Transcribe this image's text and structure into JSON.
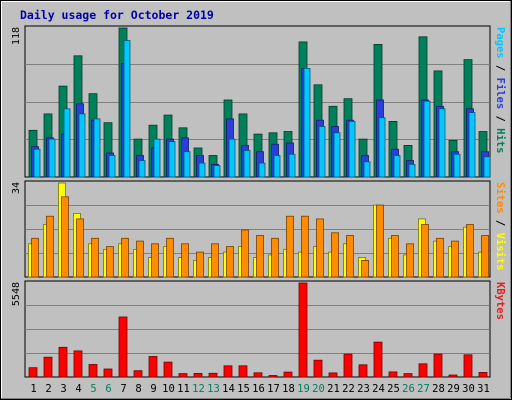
{
  "chart_data": {
    "type": "bar",
    "title": "Daily usage for October 2019",
    "categories": [
      "1",
      "2",
      "3",
      "4",
      "5",
      "6",
      "7",
      "8",
      "9",
      "10",
      "11",
      "12",
      "13",
      "14",
      "15",
      "16",
      "17",
      "18",
      "19",
      "20",
      "21",
      "22",
      "23",
      "24",
      "25",
      "26",
      "27",
      "28",
      "29",
      "30",
      "31"
    ],
    "weekend_days": [
      "5",
      "6",
      "12",
      "13",
      "19",
      "20",
      "26",
      "27"
    ],
    "panels": [
      {
        "id": "hits",
        "max_label": "118",
        "ylim": [
          0,
          118
        ],
        "right_label": [
          "Pages",
          "Files",
          "Hits"
        ],
        "right_colors": [
          "#00c8ff",
          "#2a3fd8",
          "#00805a"
        ],
        "series": [
          {
            "name": "Hits",
            "color": "#00805a",
            "values": [
              37,
              50,
              72,
              96,
              66,
              43,
              118,
              30,
              41,
              49,
              39,
              23,
              17,
              61,
              50,
              34,
              35,
              36,
              107,
              73,
              56,
              62,
              30,
              105,
              44,
              25,
              111,
              84,
              29,
              93,
              36
            ]
          },
          {
            "name": "Files",
            "color": "#2a3fd8",
            "values": [
              24,
              31,
              34,
              58,
              45,
              19,
              90,
              17,
              23,
              30,
              31,
              17,
              10,
              46,
              25,
              20,
              26,
              27,
              86,
              45,
              40,
              45,
              17,
              61,
              22,
              13,
              61,
              56,
              20,
              54,
              20
            ]
          },
          {
            "name": "Pages",
            "color": "#00c8ff",
            "values": [
              22,
              30,
              54,
              50,
              46,
              17,
              108,
              13,
              30,
              28,
              20,
              11,
              9,
              30,
              21,
              11,
              17,
              18,
              86,
              40,
              35,
              44,
              12,
              47,
              17,
              10,
              60,
              54,
              18,
              51,
              16
            ]
          }
        ]
      },
      {
        "id": "visits",
        "max_label": "34",
        "ylim": [
          0,
          34
        ],
        "right_label": [
          "Sites",
          "Visits"
        ],
        "right_colors": [
          "#ff8c00",
          "#ffff00"
        ],
        "series": [
          {
            "name": "Visits",
            "color": "#ffff00",
            "values": [
              12,
              19,
              34,
              23,
              12,
              10,
              12,
              10,
              7,
              11,
              7,
              6,
              7,
              9,
              11,
              7,
              8,
              10,
              9,
              11,
              9,
              12,
              7,
              26,
              14,
              8,
              21,
              13,
              11,
              18,
              9
            ]
          },
          {
            "name": "Sites",
            "color": "#ff8c00",
            "values": [
              14,
              22,
              29,
              21,
              14,
              11,
              14,
              13,
              12,
              14,
              12,
              9,
              12,
              11,
              17,
              15,
              14,
              22,
              22,
              21,
              16,
              15,
              6,
              26,
              15,
              12,
              19,
              14,
              13,
              19,
              15
            ]
          }
        ]
      },
      {
        "id": "kbytes",
        "max_label": "5548",
        "ylim": [
          0,
          5548
        ],
        "right_label": [
          "KBytes"
        ],
        "right_colors": [
          "#e02020"
        ],
        "series": [
          {
            "name": "KBytes",
            "color": "#ff0000",
            "values": [
              550,
              1170,
              1750,
              1540,
              740,
              470,
              3540,
              370,
              1210,
              880,
              200,
              210,
              220,
              660,
              660,
              250,
              90,
              290,
              5548,
              990,
              240,
              1350,
              720,
              2060,
              300,
              200,
              780,
              1350,
              120,
              1310,
              270
            ]
          }
        ]
      }
    ]
  }
}
